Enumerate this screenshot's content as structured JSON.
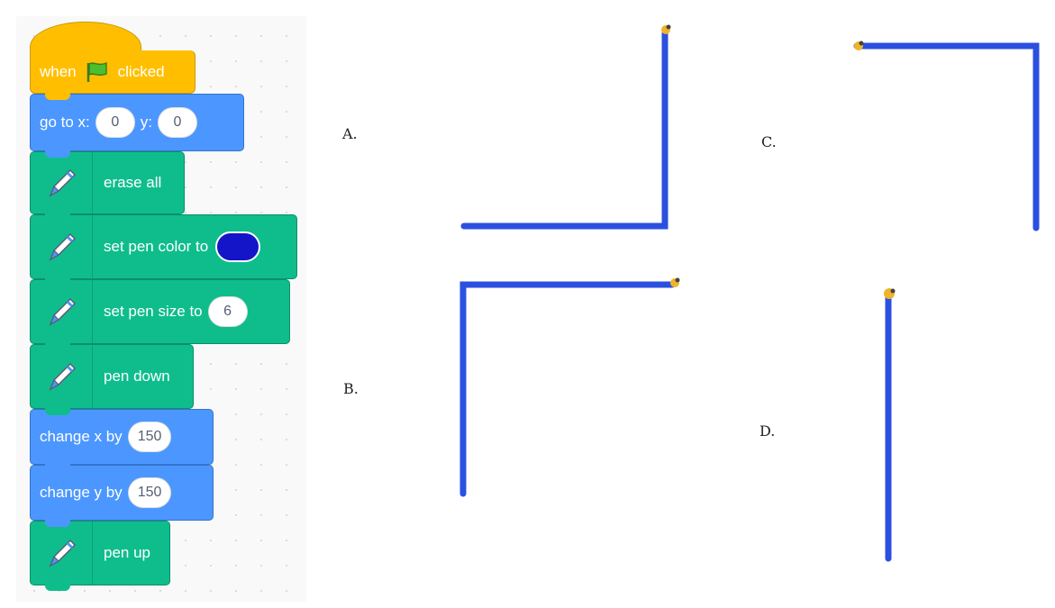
{
  "blocks": {
    "when_clicked": {
      "prefix": "when",
      "suffix": "clicked"
    },
    "go_to": {
      "label": "go to x:",
      "x_value": "0",
      "y_label": "y:",
      "y_value": "0"
    },
    "erase_all": {
      "label": "erase all"
    },
    "set_pen_color": {
      "label": "set pen color to",
      "color": "#1414c8"
    },
    "set_pen_size": {
      "label": "set pen size to",
      "value": "6"
    },
    "pen_down": {
      "label": "pen down"
    },
    "change_x": {
      "label": "change x by",
      "value": "150"
    },
    "change_y": {
      "label": "change y by",
      "value": "150"
    },
    "pen_up": {
      "label": "pen up"
    }
  },
  "options": [
    {
      "label": "A."
    },
    {
      "label": "C."
    },
    {
      "label": "B."
    },
    {
      "label": "D."
    }
  ],
  "colors": {
    "events": "#ffbf00",
    "motion": "#4c97ff",
    "pen": "#0fbd8c",
    "line": "#2b50e0"
  },
  "icons": [
    "green-flag-icon",
    "pen-icon",
    "sprite-icon"
  ]
}
